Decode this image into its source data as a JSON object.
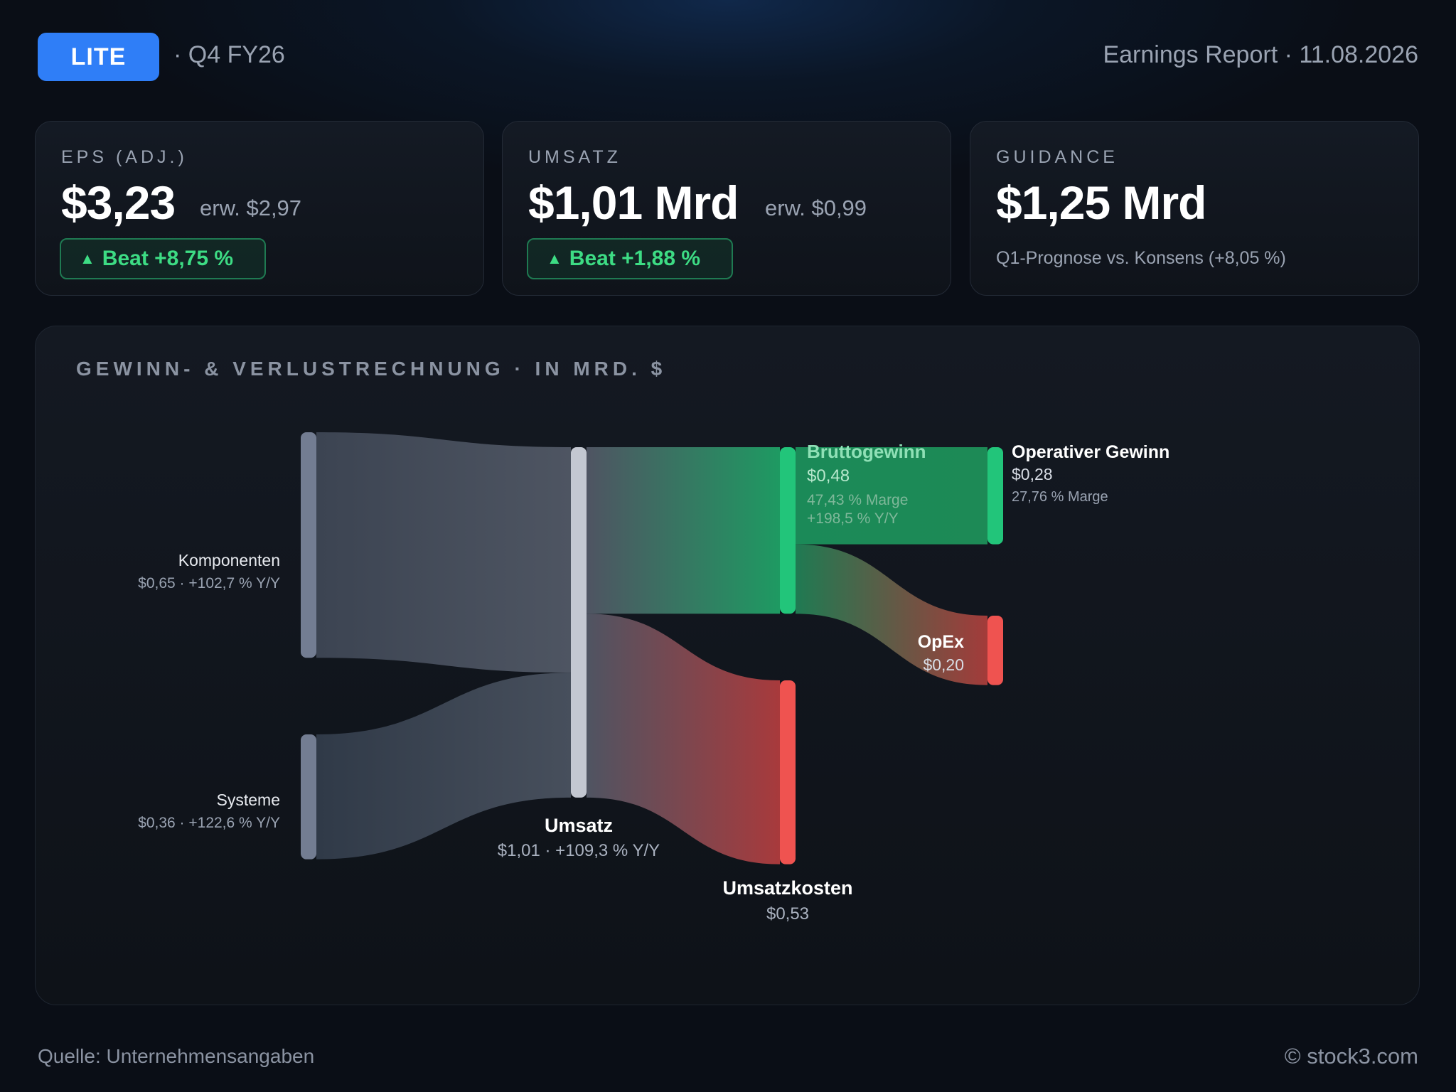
{
  "header": {
    "ticker": "LITE",
    "period": "· Q4 FY26",
    "report": "Earnings Report · 11.08.2026"
  },
  "kpis": {
    "eps": {
      "label": "EPS (ADJ.)",
      "value": "$3,23",
      "expected": "erw. $2,97",
      "beat": "Beat +8,75 %"
    },
    "revenue": {
      "label": "UMSATZ",
      "value": "$1,01 Mrd",
      "expected": "erw. $0,99",
      "beat": "Beat +1,88 %"
    },
    "guidance": {
      "label": "GUIDANCE",
      "value": "$1,25 Mrd",
      "note": "Q1-Prognose vs. Konsens (+8,05 %)"
    }
  },
  "colors": {
    "accent": "#2f7ef7",
    "positive": "#22c57a",
    "negative": "#ef5350",
    "neutral_node": "#737d92",
    "revenue_node": "#c3c7d1"
  },
  "chart_data": {
    "type": "sankey",
    "title": "GEWINN- & VERLUSTRECHNUNG · IN MRD. $",
    "unit": "Mrd. $",
    "nodes": [
      {
        "id": "komponenten",
        "name": "Komponenten",
        "value": 0.65,
        "value_label": "$0,65",
        "detail": "+102,7 % Y/Y"
      },
      {
        "id": "systeme",
        "name": "Systeme",
        "value": 0.36,
        "value_label": "$0,36",
        "detail": "+122,6 % Y/Y"
      },
      {
        "id": "umsatz",
        "name": "Umsatz",
        "value": 1.01,
        "value_label": "$1,01",
        "detail": "+109,3 % Y/Y"
      },
      {
        "id": "brutto",
        "name": "Bruttogewinn",
        "value": 0.48,
        "value_label": "$0,48",
        "detail": "47,43 % Marge",
        "detail2": "+198,5 % Y/Y"
      },
      {
        "id": "kosten",
        "name": "Umsatzkosten",
        "value": 0.53,
        "value_label": "$0,53"
      },
      {
        "id": "opgewinn",
        "name": "Operativer Gewinn",
        "value": 0.28,
        "value_label": "$0,28",
        "detail": "27,76 % Marge"
      },
      {
        "id": "opex",
        "name": "OpEx",
        "value": 0.2,
        "value_label": "$0,20"
      }
    ],
    "links": [
      {
        "source": "komponenten",
        "target": "umsatz",
        "value": 0.65
      },
      {
        "source": "systeme",
        "target": "umsatz",
        "value": 0.36
      },
      {
        "source": "umsatz",
        "target": "brutto",
        "value": 0.48
      },
      {
        "source": "umsatz",
        "target": "kosten",
        "value": 0.53
      },
      {
        "source": "brutto",
        "target": "opgewinn",
        "value": 0.28
      },
      {
        "source": "brutto",
        "target": "opex",
        "value": 0.2
      }
    ]
  },
  "footer": {
    "source": "Quelle: Unternehmensangaben",
    "brand": "© stock3.com"
  }
}
